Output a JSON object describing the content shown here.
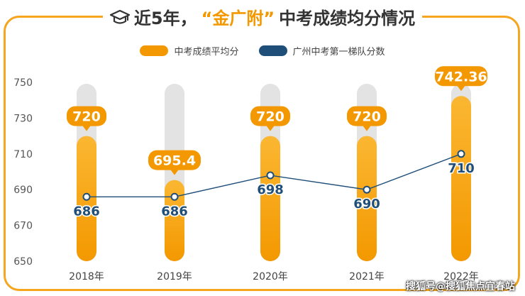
{
  "title": {
    "prefix": "近5年，",
    "accent": "“金广附”",
    "suffix": " 中考成绩均分情况"
  },
  "legend": {
    "series1": "中考成绩平均分",
    "series2": "广州中考第一梯队分数"
  },
  "colors": {
    "bar": "#f39800",
    "bar_light": "#fbb732",
    "line": "#1f4e79",
    "track": "#e3e3e3",
    "accent": "#f5a51e"
  },
  "watermark": "搜狐号@搜狐焦点宜春站",
  "chart_data": {
    "type": "bar",
    "categories": [
      "2018年",
      "2019年",
      "2020年",
      "2021年",
      "2022年"
    ],
    "ylim": [
      650,
      750
    ],
    "yticks": [
      650,
      670,
      690,
      710,
      730,
      750
    ],
    "series": [
      {
        "name": "中考成绩平均分",
        "type": "bar",
        "values": [
          720,
          695.4,
          720,
          720,
          742.36
        ],
        "labels": [
          "720",
          "695.4",
          "720",
          "720",
          "742.36"
        ]
      },
      {
        "name": "广州中考第一梯队分数",
        "type": "line",
        "values": [
          686,
          686,
          698,
          690,
          710
        ],
        "labels": [
          "686",
          "686",
          "698",
          "690",
          "710"
        ]
      }
    ]
  }
}
